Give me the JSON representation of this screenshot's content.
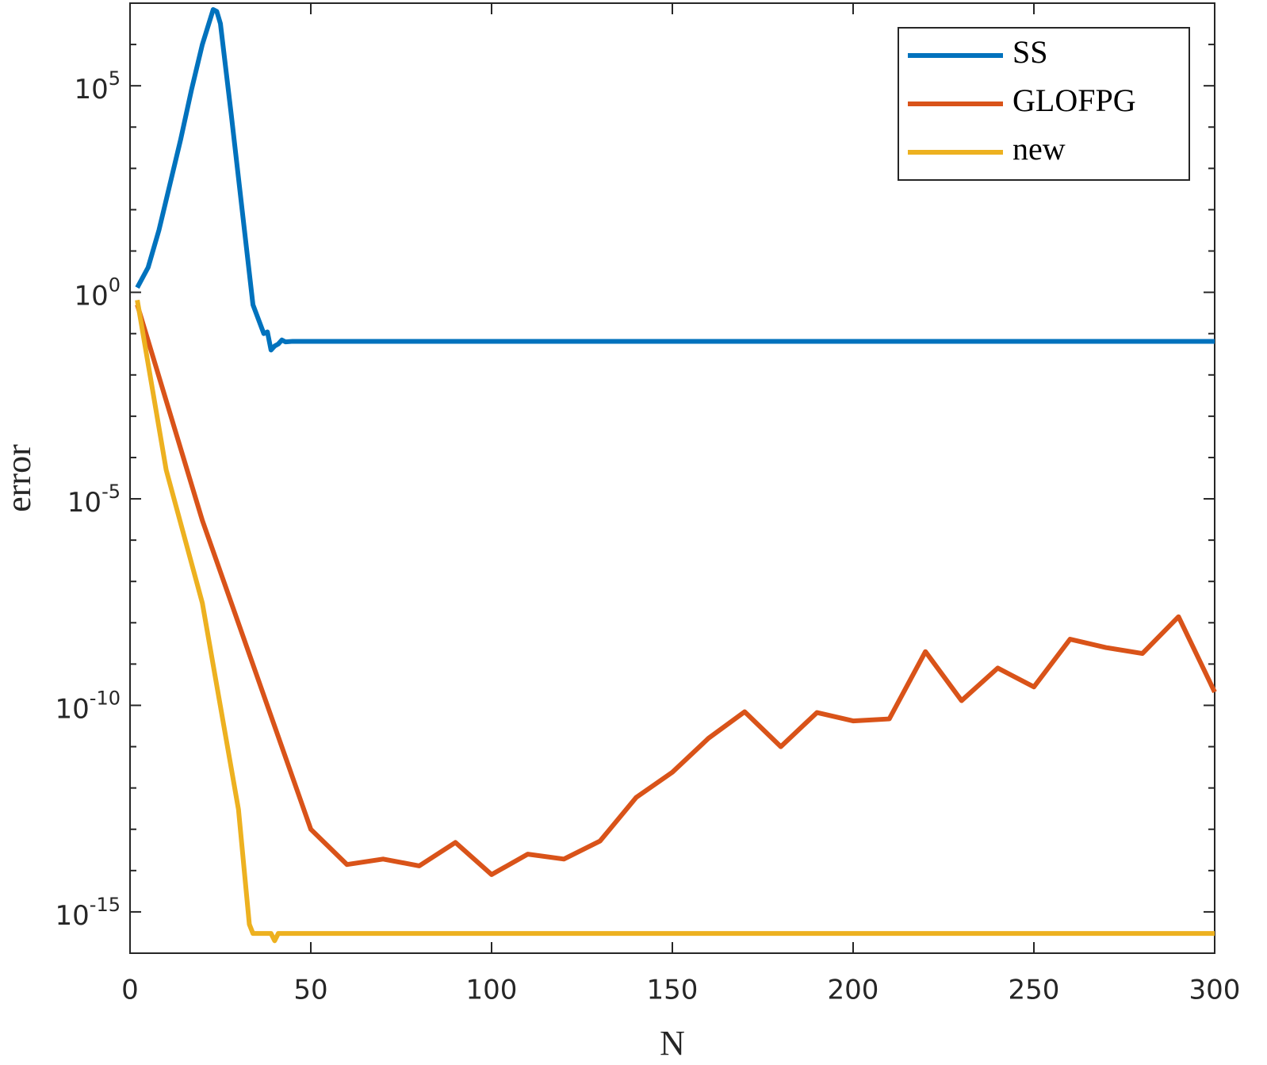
{
  "chart_data": {
    "type": "line",
    "xlabel": "N",
    "ylabel": "error",
    "yscale": "log",
    "xlim": [
      0,
      300
    ],
    "xticks": [
      0,
      50,
      100,
      150,
      200,
      250,
      300
    ],
    "ylim": [
      1e-16,
      10000000.0
    ],
    "yticks": [
      {
        "value": 1e-15,
        "label": "10^-15"
      },
      {
        "value": 1e-10,
        "label": "10^-10"
      },
      {
        "value": 1e-05,
        "label": "10^-5"
      },
      {
        "value": 1,
        "label": "10^0"
      },
      {
        "value": 100000,
        "label": "10^5"
      }
    ],
    "yminorticks": [
      1e-16,
      1e-14,
      1e-13,
      1e-12,
      1e-11,
      1e-09,
      1e-08,
      1e-07,
      1e-06,
      0.0001,
      0.001,
      0.01,
      0.1,
      10,
      100,
      1000,
      10000,
      1000000.0,
      10000000.0
    ],
    "legend": "upper right",
    "series": [
      {
        "name": "SS",
        "color": "#0072bd",
        "x": [
          2,
          5,
          8,
          11,
          14,
          17,
          20,
          23,
          24,
          25,
          28,
          31,
          34,
          37,
          38,
          39,
          40,
          41,
          42,
          43,
          45,
          300
        ],
        "values": [
          1.3,
          4,
          32,
          400,
          5000,
          80000,
          1000000.0,
          7000000.0,
          6300000.0,
          3200000.0,
          20000.0,
          100,
          0.5,
          0.1,
          0.11,
          0.04,
          0.05,
          0.056,
          0.07,
          0.063,
          0.065,
          0.065
        ]
      },
      {
        "name": "GLOFPG",
        "color": "#d95319",
        "x": [
          2,
          20,
          50,
          60,
          70,
          80,
          90,
          100,
          110,
          120,
          130,
          140,
          150,
          160,
          170,
          180,
          190,
          200,
          210,
          220,
          230,
          240,
          250,
          260,
          270,
          280,
          290,
          300
        ],
        "values": [
          0.5,
          3e-06,
          1e-13,
          1.4e-14,
          1.9e-14,
          1.3e-14,
          4.8e-14,
          8e-15,
          2.5e-14,
          1.9e-14,
          5.2e-14,
          5.9e-13,
          2.4e-12,
          1.6e-11,
          7e-11,
          1e-11,
          6.7e-11,
          4.2e-11,
          4.7e-11,
          2e-09,
          1.3e-10,
          8e-10,
          2.8e-10,
          4e-09,
          2.5e-09,
          1.8e-09,
          1.4e-08,
          2.1e-10
        ]
      },
      {
        "name": "new",
        "color": "#edb120",
        "x": [
          2,
          10,
          20,
          30,
          33,
          34,
          39,
          40,
          41,
          300
        ],
        "values": [
          0.65,
          5e-05,
          3e-08,
          3e-13,
          5e-16,
          3e-16,
          3e-16,
          2e-16,
          3e-16,
          3e-16
        ]
      }
    ]
  }
}
